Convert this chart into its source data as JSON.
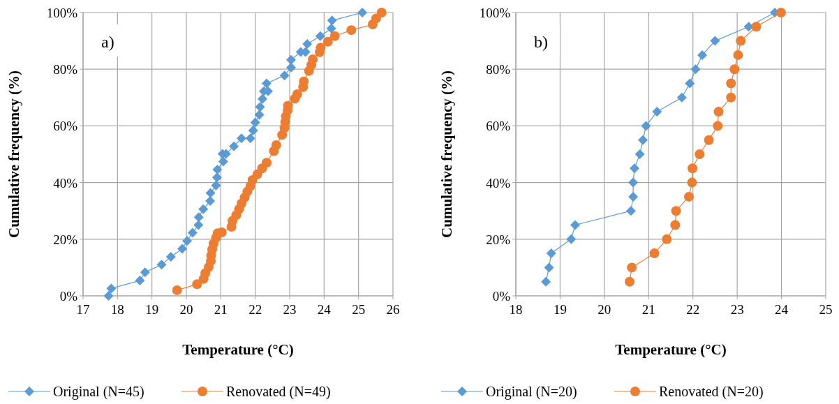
{
  "chart_data": [
    {
      "type": "line",
      "xlabel": "Temperature (°C)",
      "ylabel": "Cumulative frequency (%)",
      "annotations": [
        "a)"
      ],
      "xlim": [
        17,
        26
      ],
      "xticks": [
        17,
        18,
        19,
        20,
        21,
        22,
        23,
        24,
        25,
        26
      ],
      "ylim": [
        0,
        100
      ],
      "yticks": [
        {
          "value": 0,
          "label": "0%"
        },
        {
          "value": 20,
          "label": "20%"
        },
        {
          "value": 40,
          "label": "40%"
        },
        {
          "value": 60,
          "label": "60%"
        },
        {
          "value": 80,
          "label": "80%"
        },
        {
          "value": 100,
          "label": "100%"
        }
      ],
      "grid": true,
      "legend": "bottom",
      "series": [
        {
          "name": "Original (N=45)",
          "color": "#5b9bd5",
          "marker": "diamond",
          "x": [
            17.74,
            17.82,
            18.65,
            18.8,
            19.28,
            19.55,
            19.88,
            20.02,
            20.18,
            20.35,
            20.36,
            20.49,
            20.69,
            20.7,
            20.86,
            20.89,
            20.9,
            21.07,
            21.05,
            21.15,
            21.38,
            21.6,
            21.86,
            21.94,
            22.0,
            22.12,
            22.14,
            22.21,
            22.25,
            22.37,
            22.33,
            22.85,
            23.04,
            23.04,
            23.32,
            23.46,
            23.51,
            23.89,
            24.21,
            24.23,
            25.11
          ],
          "values": [
            0,
            2.6,
            5.4,
            8.3,
            11,
            13.8,
            16.6,
            19.4,
            22.3,
            25,
            27.8,
            30.6,
            33.5,
            36.3,
            39,
            41.8,
            44.6,
            47.4,
            50.1,
            50.1,
            52.8,
            55.6,
            55.6,
            58.4,
            61.2,
            63.9,
            66.7,
            69.5,
            72.2,
            72.2,
            75,
            77.8,
            80.6,
            83.3,
            86.1,
            86.1,
            88.9,
            91.7,
            94.4,
            97.2,
            100
          ]
        },
        {
          "name": "Renovated (N=49)",
          "color": "#ed7d31",
          "marker": "circle",
          "x": [
            19.73,
            20.31,
            20.5,
            20.55,
            20.65,
            20.71,
            20.72,
            20.75,
            20.79,
            20.86,
            20.91,
            21.03,
            21.31,
            21.34,
            21.45,
            21.53,
            21.6,
            21.69,
            21.77,
            21.86,
            21.92,
            22.06,
            22.2,
            22.33,
            22.54,
            22.61,
            22.78,
            22.85,
            22.87,
            22.89,
            22.94,
            22.95,
            23.15,
            23.22,
            23.39,
            23.41,
            23.56,
            23.63,
            23.67,
            23.87,
            23.9,
            24.11,
            24.31,
            24.79,
            25.41,
            25.51,
            25.67
          ],
          "values": [
            2,
            4.1,
            6,
            8,
            10.2,
            12.3,
            14.3,
            16.4,
            18.4,
            20.5,
            22.1,
            22.4,
            24.4,
            26.5,
            28.5,
            30.6,
            32.6,
            34.7,
            36.8,
            38.8,
            40.9,
            42.9,
            45,
            47,
            51.1,
            53.2,
            56.8,
            59.3,
            61.4,
            63.4,
            65.5,
            67.1,
            69.6,
            71.2,
            73.7,
            75.7,
            79.4,
            81.5,
            83.5,
            86,
            87.6,
            89.7,
            91.7,
            93.8,
            95.8,
            97.9,
            100
          ]
        }
      ]
    },
    {
      "type": "line",
      "xlabel": "Temperature (°C)",
      "ylabel": "Cumulative frequency (%)",
      "annotations": [
        "b)"
      ],
      "xlim": [
        18,
        25
      ],
      "xticks": [
        18,
        19,
        20,
        21,
        22,
        23,
        24,
        25
      ],
      "ylim": [
        0,
        100
      ],
      "yticks": [
        {
          "value": 0,
          "label": "0%"
        },
        {
          "value": 20,
          "label": "20%"
        },
        {
          "value": 40,
          "label": "40%"
        },
        {
          "value": 60,
          "label": "60%"
        },
        {
          "value": 80,
          "label": "80%"
        },
        {
          "value": 100,
          "label": "100%"
        }
      ],
      "grid": true,
      "legend": "bottom",
      "series": [
        {
          "name": "Original (N=20)",
          "color": "#5b9bd5",
          "marker": "diamond",
          "x": [
            18.68,
            18.75,
            18.8,
            19.25,
            19.34,
            20.6,
            20.65,
            20.65,
            20.68,
            20.8,
            20.87,
            20.94,
            21.19,
            21.75,
            21.93,
            22.06,
            22.21,
            22.5,
            23.26,
            23.85
          ],
          "values": [
            5,
            10,
            15,
            20,
            25,
            30,
            35,
            40,
            45,
            50,
            55,
            60,
            65,
            70,
            75,
            80,
            85,
            90,
            95,
            100
          ]
        },
        {
          "name": "Renovated (N=20)",
          "color": "#ed7d31",
          "marker": "circle",
          "x": [
            20.57,
            20.62,
            21.13,
            21.41,
            21.6,
            21.62,
            21.91,
            21.98,
            21.99,
            22.15,
            22.36,
            22.56,
            22.58,
            22.86,
            22.86,
            22.94,
            23.02,
            23.08,
            23.43,
            23.99
          ],
          "values": [
            5,
            10,
            15,
            20,
            25,
            30,
            35,
            40,
            45,
            50,
            55,
            60,
            65,
            70,
            75,
            80,
            85,
            90,
            95,
            100
          ]
        }
      ]
    }
  ]
}
